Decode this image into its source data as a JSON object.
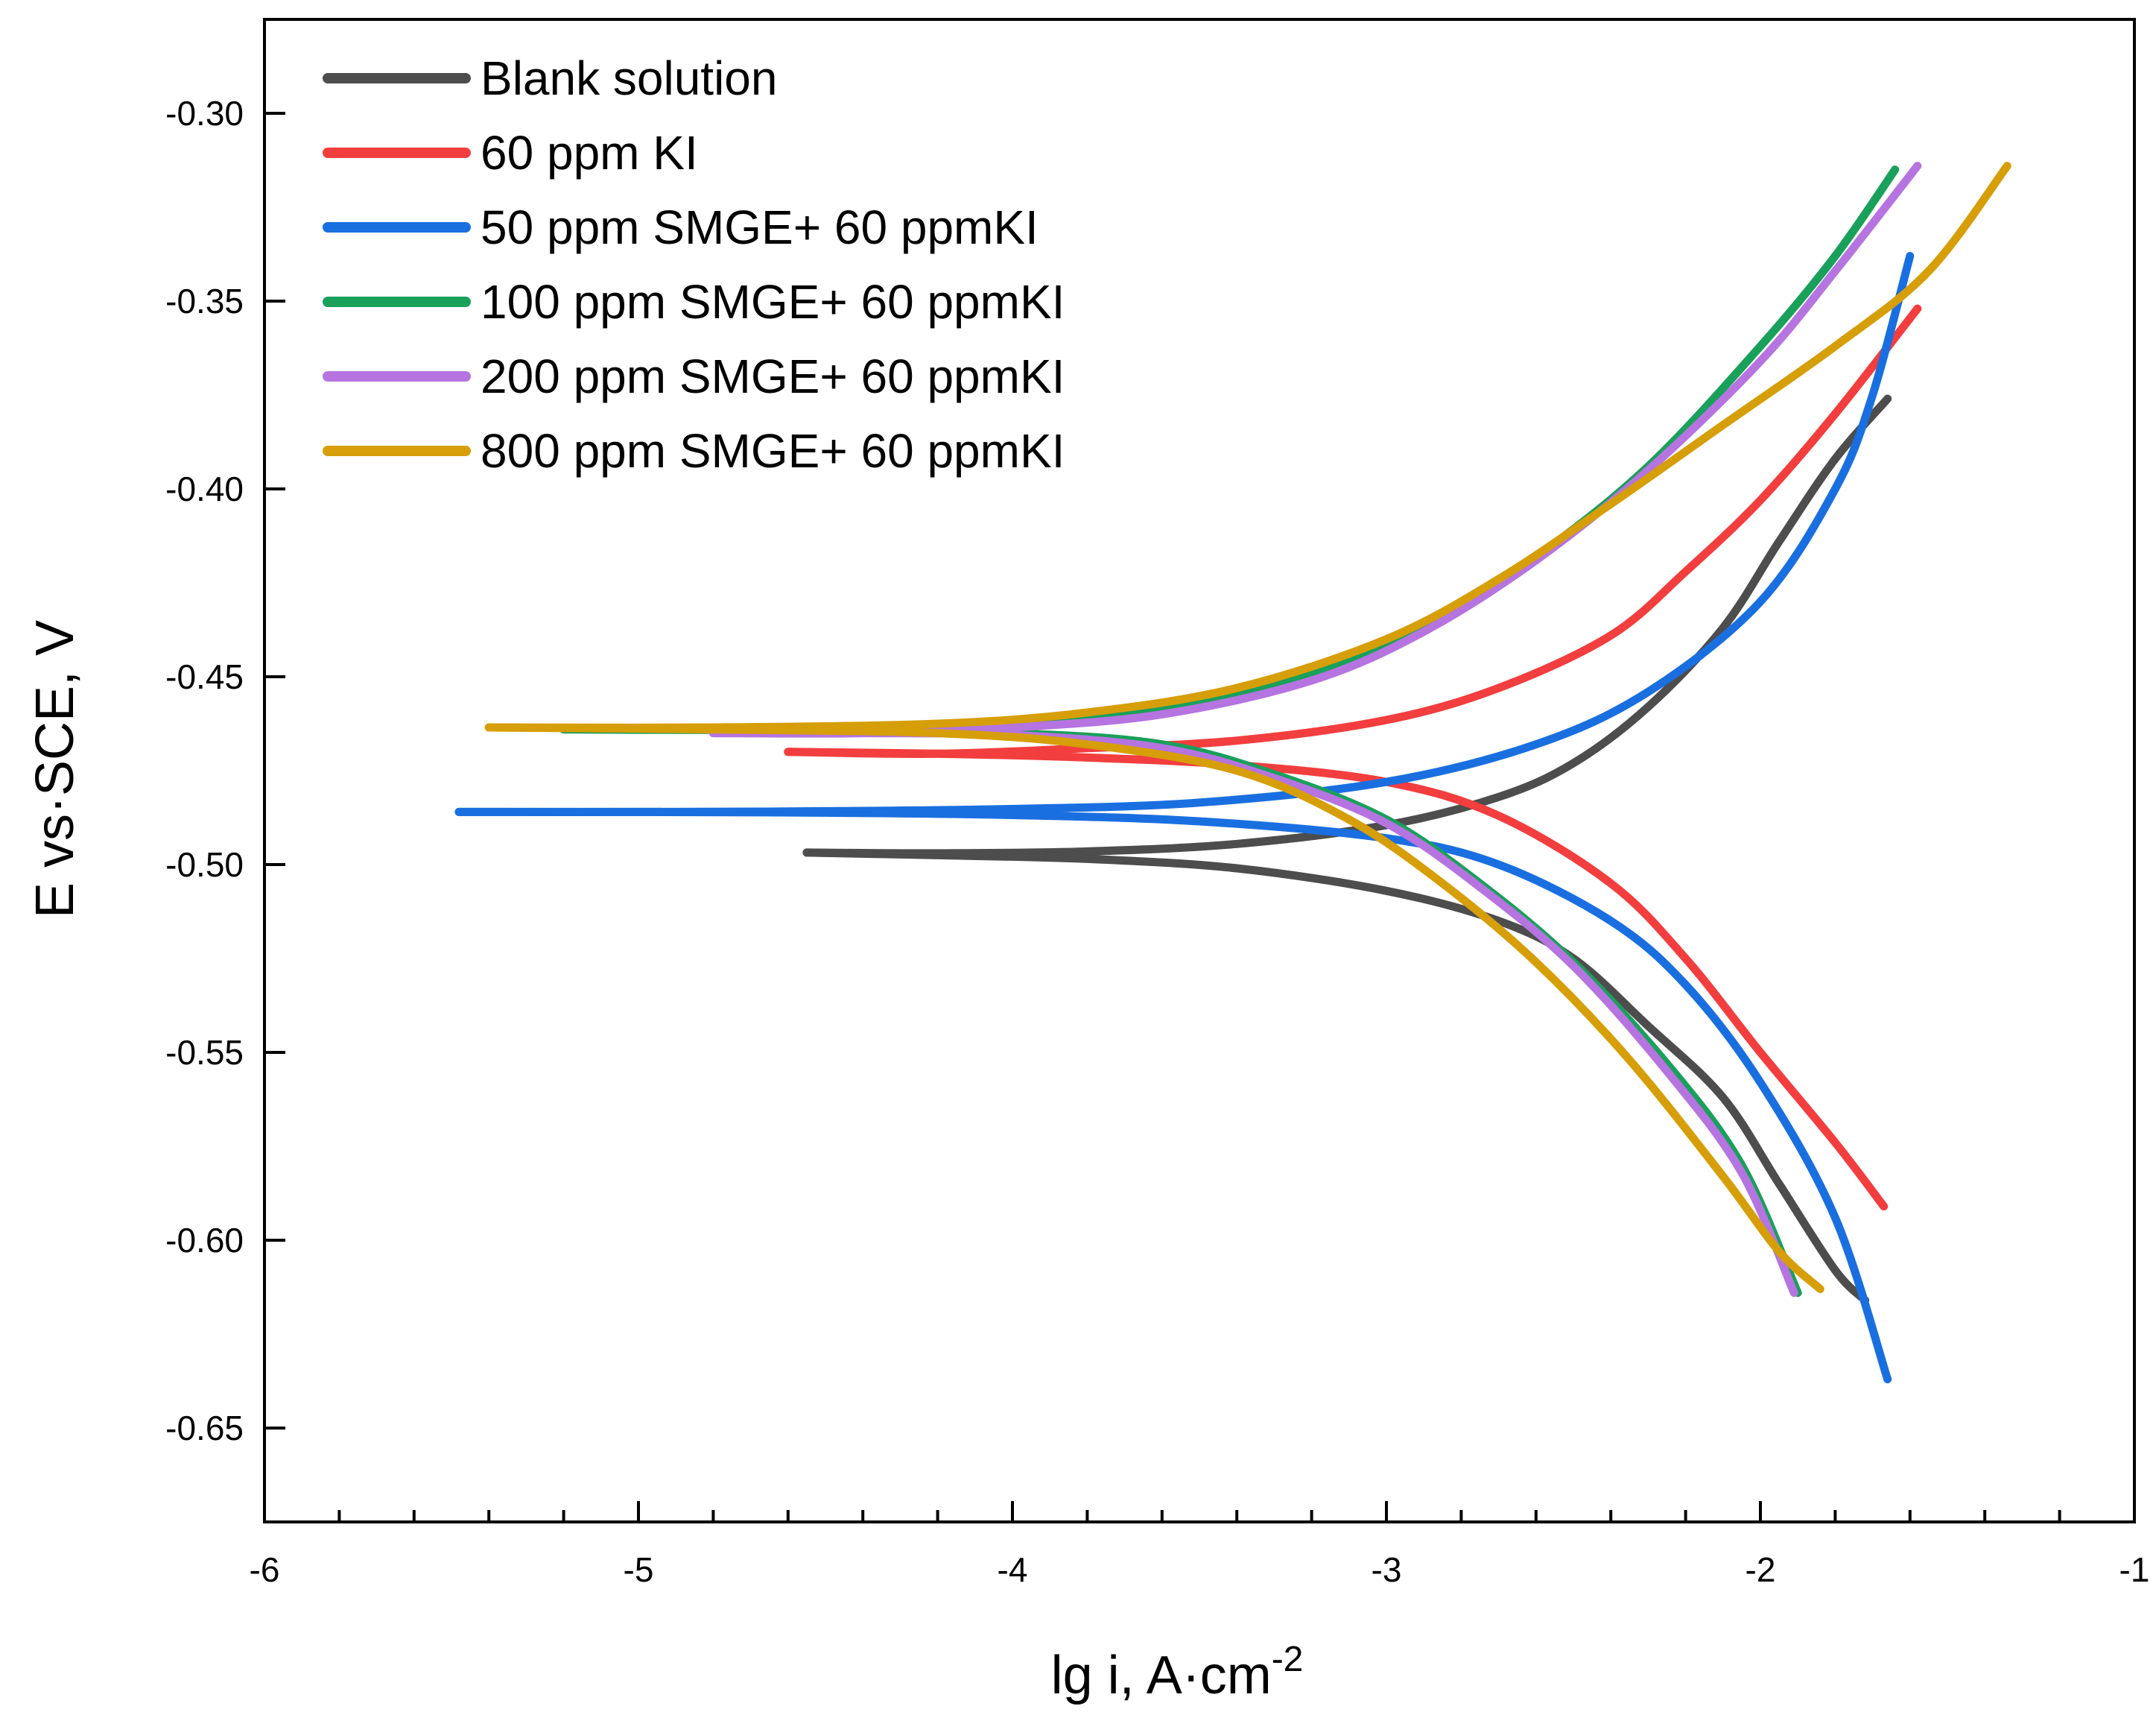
{
  "chart_data": {
    "type": "line",
    "xlabel": "lg i, A·cm",
    "xlabel_superscript": "-2",
    "ylabel": "E vs·SCE, V",
    "xlim": [
      -6,
      -1
    ],
    "ylim": [
      -0.675,
      -0.275
    ],
    "x_ticks": [
      -6,
      -5,
      -4,
      -3,
      -2,
      -1
    ],
    "x_tick_labels": [
      "-6",
      "-5",
      "-4",
      "-3",
      "-2",
      "-1"
    ],
    "y_ticks": [
      -0.3,
      -0.35,
      -0.4,
      -0.45,
      -0.5,
      -0.55,
      -0.6,
      -0.65
    ],
    "y_tick_labels": [
      "-0.30",
      "-0.35",
      "-0.40",
      "-0.45",
      "-0.50",
      "-0.55",
      "-0.60",
      "-0.65"
    ],
    "grid": false,
    "legend_position": "top-left",
    "series": [
      {
        "name": "Blank solution",
        "color": "#4d4d4d",
        "anodic": [
          [
            -4.55,
            -0.4968
          ],
          [
            -4.2,
            -0.497
          ],
          [
            -3.8,
            -0.4965
          ],
          [
            -3.4,
            -0.4945
          ],
          [
            -3.0,
            -0.4895
          ],
          [
            -2.7,
            -0.482
          ],
          [
            -2.5,
            -0.473
          ],
          [
            -2.3,
            -0.458
          ],
          [
            -2.1,
            -0.437
          ],
          [
            -1.95,
            -0.414
          ],
          [
            -1.8,
            -0.392
          ],
          [
            -1.66,
            -0.376
          ]
        ],
        "cathodic": [
          [
            -4.55,
            -0.4968
          ],
          [
            -4.2,
            -0.4975
          ],
          [
            -3.8,
            -0.4985
          ],
          [
            -3.4,
            -0.501
          ],
          [
            -3.0,
            -0.507
          ],
          [
            -2.7,
            -0.515
          ],
          [
            -2.5,
            -0.525
          ],
          [
            -2.3,
            -0.543
          ],
          [
            -2.1,
            -0.562
          ],
          [
            -1.95,
            -0.585
          ],
          [
            -1.8,
            -0.608
          ],
          [
            -1.72,
            -0.616
          ]
        ]
      },
      {
        "name": "60 ppm KI",
        "color": "#f23e3e",
        "anodic": [
          [
            -4.6,
            -0.47
          ],
          [
            -4.2,
            -0.4705
          ],
          [
            -3.8,
            -0.469
          ],
          [
            -3.4,
            -0.467
          ],
          [
            -3.0,
            -0.4615
          ],
          [
            -2.7,
            -0.453
          ],
          [
            -2.4,
            -0.439
          ],
          [
            -2.2,
            -0.422
          ],
          [
            -2.0,
            -0.403
          ],
          [
            -1.8,
            -0.38
          ],
          [
            -1.58,
            -0.352
          ]
        ],
        "cathodic": [
          [
            -4.6,
            -0.47
          ],
          [
            -4.2,
            -0.4705
          ],
          [
            -3.8,
            -0.4715
          ],
          [
            -3.4,
            -0.4735
          ],
          [
            -3.0,
            -0.478
          ],
          [
            -2.7,
            -0.487
          ],
          [
            -2.4,
            -0.505
          ],
          [
            -2.2,
            -0.525
          ],
          [
            -2.0,
            -0.55
          ],
          [
            -1.8,
            -0.574
          ],
          [
            -1.67,
            -0.591
          ]
        ]
      },
      {
        "name": "50 ppm SMGE+ 60 ppmKI",
        "color": "#1a6fe0",
        "anodic": [
          [
            -5.48,
            -0.486
          ],
          [
            -5.0,
            -0.486
          ],
          [
            -4.5,
            -0.4858
          ],
          [
            -4.0,
            -0.4852
          ],
          [
            -3.5,
            -0.4835
          ],
          [
            -3.0,
            -0.478
          ],
          [
            -2.6,
            -0.468
          ],
          [
            -2.3,
            -0.454
          ],
          [
            -2.0,
            -0.43
          ],
          [
            -1.8,
            -0.4
          ],
          [
            -1.7,
            -0.375
          ],
          [
            -1.6,
            -0.338
          ]
        ],
        "cathodic": [
          [
            -5.48,
            -0.486
          ],
          [
            -5.0,
            -0.486
          ],
          [
            -4.5,
            -0.4862
          ],
          [
            -4.0,
            -0.4868
          ],
          [
            -3.5,
            -0.4885
          ],
          [
            -3.0,
            -0.493
          ],
          [
            -2.7,
            -0.5
          ],
          [
            -2.4,
            -0.515
          ],
          [
            -2.2,
            -0.532
          ],
          [
            -2.0,
            -0.558
          ],
          [
            -1.8,
            -0.594
          ],
          [
            -1.66,
            -0.637
          ]
        ]
      },
      {
        "name": "100 ppm SMGE+ 60 ppmKI",
        "color": "#19a05a",
        "anodic": [
          [
            -5.2,
            -0.464
          ],
          [
            -4.6,
            -0.464
          ],
          [
            -4.0,
            -0.462
          ],
          [
            -3.6,
            -0.458
          ],
          [
            -3.2,
            -0.449
          ],
          [
            -2.9,
            -0.436
          ],
          [
            -2.6,
            -0.418
          ],
          [
            -2.3,
            -0.394
          ],
          [
            -2.0,
            -0.362
          ],
          [
            -1.8,
            -0.338
          ],
          [
            -1.64,
            -0.315
          ]
        ],
        "cathodic": [
          [
            -5.2,
            -0.464
          ],
          [
            -4.6,
            -0.464
          ],
          [
            -4.0,
            -0.465
          ],
          [
            -3.6,
            -0.468
          ],
          [
            -3.3,
            -0.476
          ],
          [
            -3.0,
            -0.488
          ],
          [
            -2.75,
            -0.505
          ],
          [
            -2.5,
            -0.526
          ],
          [
            -2.25,
            -0.553
          ],
          [
            -2.05,
            -0.58
          ],
          [
            -1.9,
            -0.614
          ]
        ]
      },
      {
        "name": "200 ppm SMGE+ 60 ppmKI",
        "color": "#b574e0",
        "anodic": [
          [
            -4.8,
            -0.465
          ],
          [
            -4.4,
            -0.465
          ],
          [
            -4.0,
            -0.4635
          ],
          [
            -3.6,
            -0.46
          ],
          [
            -3.2,
            -0.451
          ],
          [
            -2.9,
            -0.438
          ],
          [
            -2.6,
            -0.419
          ],
          [
            -2.3,
            -0.395
          ],
          [
            -2.0,
            -0.366
          ],
          [
            -1.8,
            -0.342
          ],
          [
            -1.58,
            -0.314
          ]
        ],
        "cathodic": [
          [
            -4.8,
            -0.465
          ],
          [
            -4.4,
            -0.465
          ],
          [
            -4.0,
            -0.4655
          ],
          [
            -3.6,
            -0.469
          ],
          [
            -3.3,
            -0.477
          ],
          [
            -3.0,
            -0.489
          ],
          [
            -2.75,
            -0.506
          ],
          [
            -2.5,
            -0.527
          ],
          [
            -2.25,
            -0.555
          ],
          [
            -2.05,
            -0.582
          ],
          [
            -1.91,
            -0.614
          ]
        ]
      },
      {
        "name": "800 ppm SMGE+ 60 ppmKI",
        "color": "#d69e08",
        "anodic": [
          [
            -5.4,
            -0.4635
          ],
          [
            -4.8,
            -0.4635
          ],
          [
            -4.2,
            -0.4625
          ],
          [
            -3.8,
            -0.4595
          ],
          [
            -3.4,
            -0.453
          ],
          [
            -3.0,
            -0.44
          ],
          [
            -2.7,
            -0.424
          ],
          [
            -2.4,
            -0.404
          ],
          [
            -2.1,
            -0.383
          ],
          [
            -1.8,
            -0.362
          ],
          [
            -1.55,
            -0.342
          ],
          [
            -1.34,
            -0.314
          ]
        ],
        "cathodic": [
          [
            -5.4,
            -0.4635
          ],
          [
            -4.8,
            -0.464
          ],
          [
            -4.2,
            -0.465
          ],
          [
            -3.8,
            -0.468
          ],
          [
            -3.4,
            -0.475
          ],
          [
            -3.1,
            -0.488
          ],
          [
            -2.85,
            -0.505
          ],
          [
            -2.6,
            -0.526
          ],
          [
            -2.35,
            -0.552
          ],
          [
            -2.1,
            -0.583
          ],
          [
            -1.95,
            -0.603
          ],
          [
            -1.84,
            -0.613
          ]
        ]
      }
    ]
  }
}
